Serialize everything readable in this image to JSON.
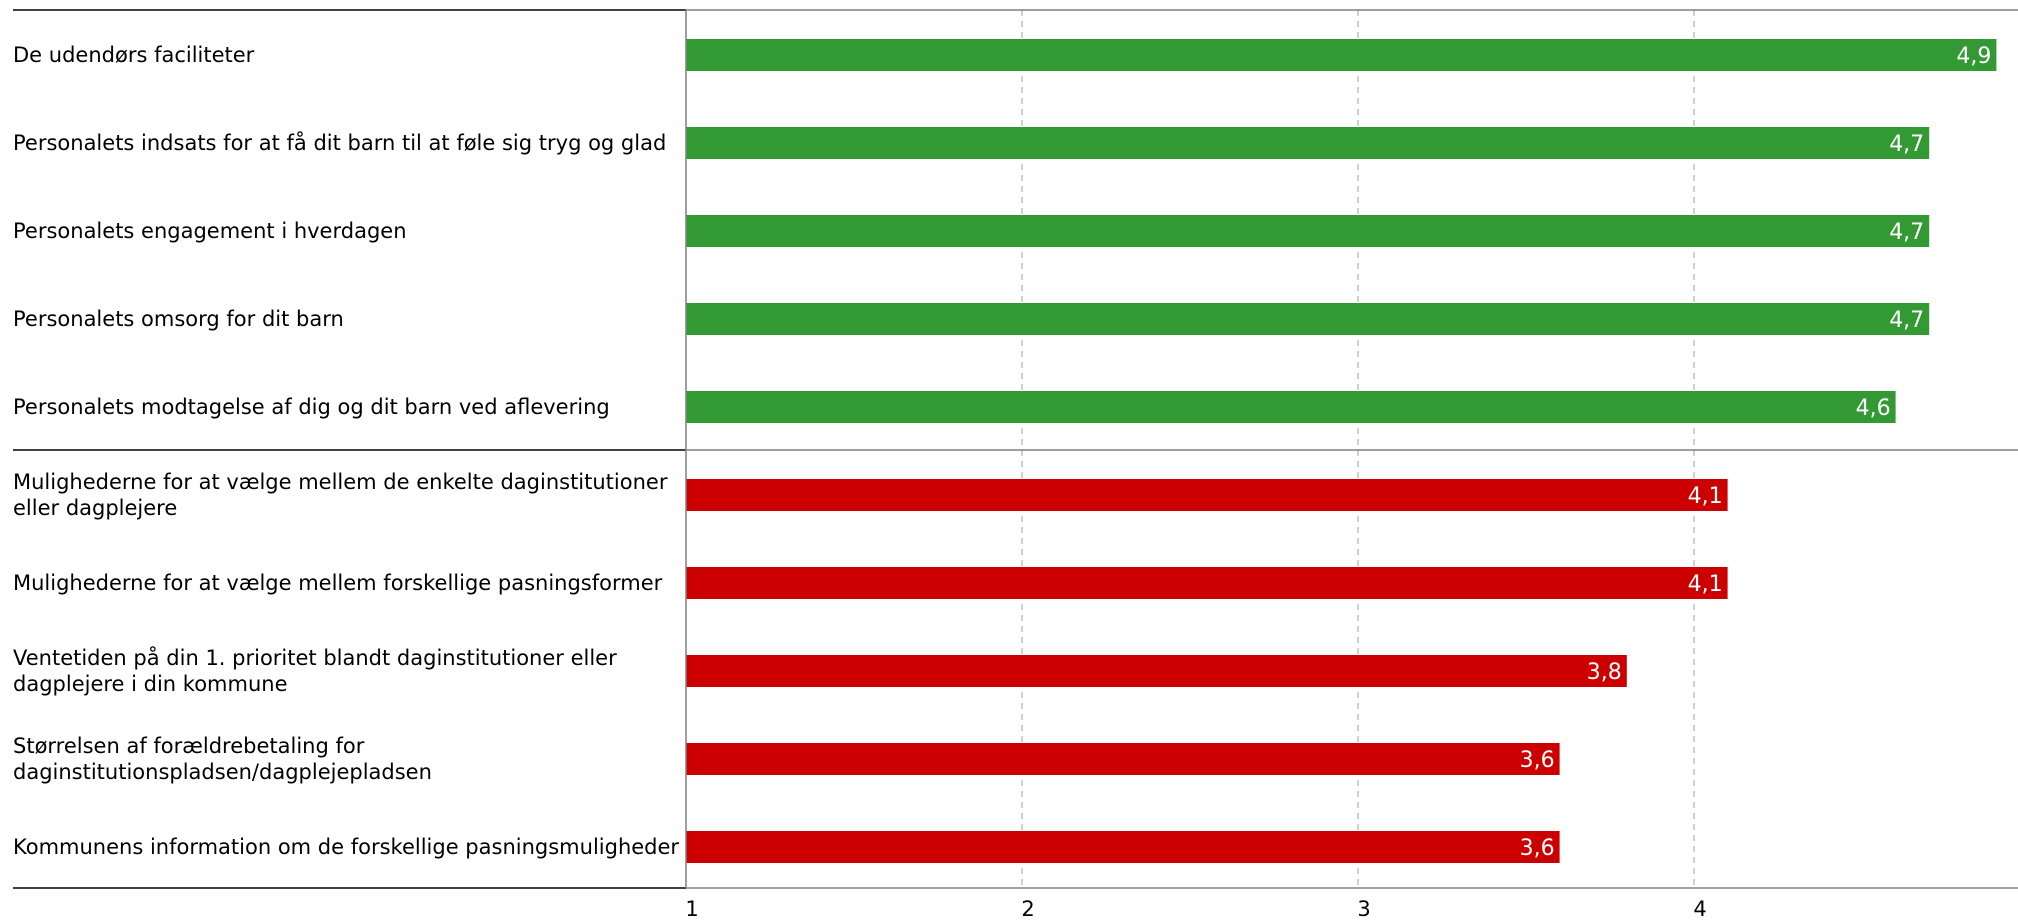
{
  "chart_data": {
    "type": "bar",
    "orientation": "horizontal",
    "title": "",
    "xlabel": "",
    "ylabel": "",
    "xlim": [
      1,
      4.95
    ],
    "x_ticks": [
      "1",
      "2",
      "3",
      "4"
    ],
    "grid": "vertical-dashed",
    "colors": {
      "top": "#339933",
      "bottom": "#cc0000",
      "grid": "#bfbfbf",
      "axis": "#808080"
    },
    "groups": [
      {
        "name": "",
        "color": "#339933",
        "items": [
          {
            "label": "De udendørs faciliteter",
            "value": 4.9,
            "value_label": "4,9"
          },
          {
            "label": "Personalets indsats for at få dit barn til at føle sig tryg og glad",
            "value": 4.7,
            "value_label": "4,7"
          },
          {
            "label": "Personalets engagement i hverdagen",
            "value": 4.7,
            "value_label": "4,7"
          },
          {
            "label": "Personalets omsorg for dit barn",
            "value": 4.7,
            "value_label": "4,7"
          },
          {
            "label": "Personalets modtagelse af dig og dit barn ved aflevering",
            "value": 4.6,
            "value_label": "4,6"
          }
        ]
      },
      {
        "name": "",
        "color": "#cc0000",
        "items": [
          {
            "label": "Mulighederne for at vælge mellem de enkelte daginstitutioner eller dagplejere",
            "value": 4.1,
            "value_label": "4,1"
          },
          {
            "label": "Mulighederne for at vælge mellem forskellige pasningsformer",
            "value": 4.1,
            "value_label": "4,1"
          },
          {
            "label": "Ventetiden på din 1. prioritet blandt daginstitutioner eller dagplejere i din kommune",
            "value": 3.8,
            "value_label": "3,8"
          },
          {
            "label": "Størrelsen af forældrebetaling for daginstitutionspladsen/dagplejepladsen",
            "value": 3.6,
            "value_label": "3,6"
          },
          {
            "label": "Kommunens information om de forskellige pasningsmuligheder",
            "value": 3.6,
            "value_label": "3,6"
          }
        ]
      }
    ]
  }
}
